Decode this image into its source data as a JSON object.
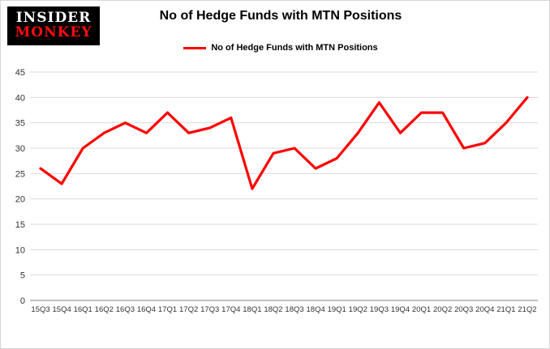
{
  "logo": {
    "line1": "INSIDER",
    "line2": "MONKEY"
  },
  "header": {
    "title": "No of Hedge Funds with MTN Positions"
  },
  "legend": {
    "label": "No of Hedge Funds with MTN Positions",
    "color": "#ff0000"
  },
  "chart_data": {
    "type": "line",
    "title": "No of Hedge Funds with MTN Positions",
    "categories": [
      "15Q3",
      "15Q4",
      "16Q1",
      "16Q2",
      "16Q3",
      "16Q4",
      "17Q1",
      "17Q2",
      "17Q3",
      "17Q4",
      "18Q1",
      "18Q2",
      "18Q3",
      "18Q4",
      "19Q1",
      "19Q2",
      "19Q3",
      "19Q4",
      "20Q1",
      "20Q2",
      "20Q3",
      "20Q4",
      "21Q1",
      "21Q2"
    ],
    "series": [
      {
        "name": "No of Hedge Funds with MTN Positions",
        "color": "#ff0000",
        "values": [
          26,
          23,
          30,
          33,
          35,
          33,
          37,
          33,
          34,
          36,
          22,
          29,
          30,
          26,
          28,
          33,
          39,
          33,
          37,
          37,
          30,
          31,
          35,
          40
        ]
      }
    ],
    "xlabel": "",
    "ylabel": "",
    "ylim": [
      0,
      45
    ],
    "ytick_interval": 5,
    "grid": true,
    "grid_color": "#d9d9d9",
    "axis_color": "#808080",
    "tick_label_color": "#333333",
    "legend_position": "top"
  }
}
